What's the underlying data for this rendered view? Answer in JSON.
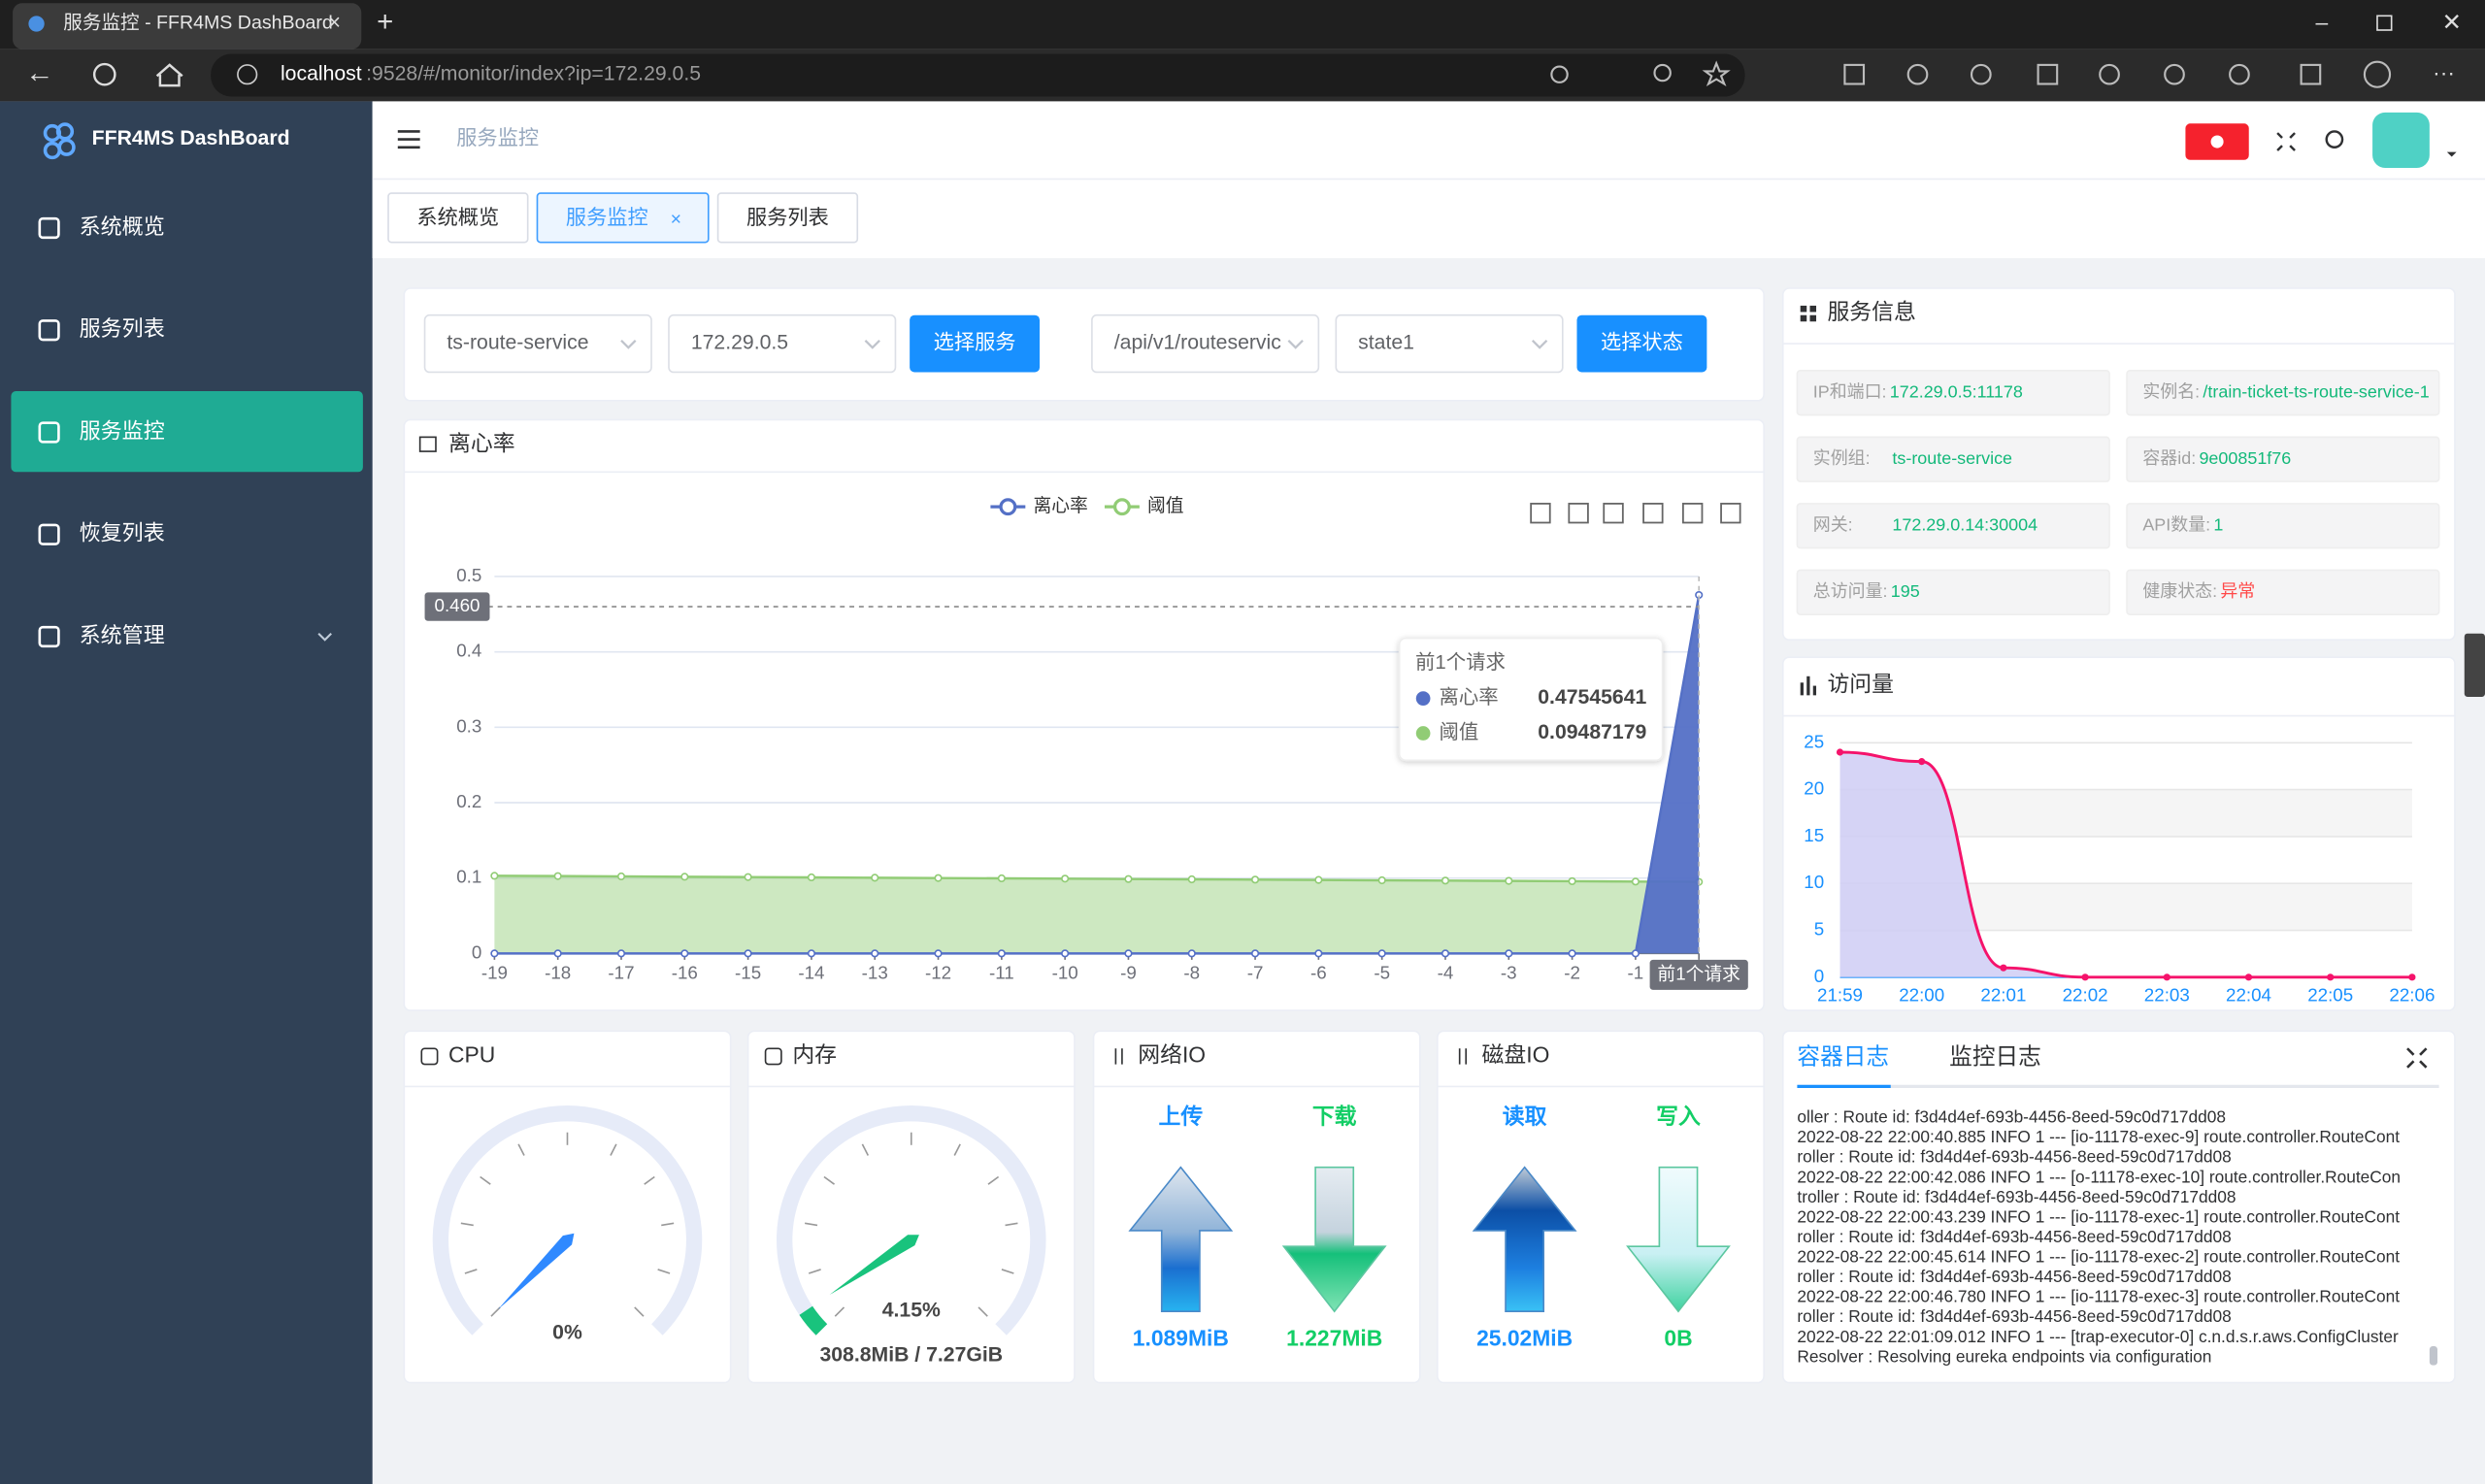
{
  "browser": {
    "tab_title": "服务监控 - FFR4MS DashBoard",
    "url_host": "localhost",
    "url_path": ":9528/#/monitor/index?ip=172.29.0.5"
  },
  "sidebar": {
    "brand": "FFR4MS DashBoard",
    "items": [
      "系统概览",
      "服务列表",
      "服务监控",
      "恢复列表",
      "系统管理"
    ],
    "active": 2
  },
  "header": {
    "breadcrumb": "服务监控"
  },
  "tabs": {
    "items": [
      "系统概览",
      "服务监控",
      "服务列表"
    ],
    "active": 1
  },
  "filters": {
    "service": "ts-route-service",
    "ip": "172.29.0.5",
    "select_service": "选择服务",
    "api": "/api/v1/routeservic",
    "state": "state1",
    "select_state": "选择状态"
  },
  "service_info": {
    "title": "服务信息",
    "fields": [
      {
        "label": "IP和端口:",
        "value": "172.29.0.5:11178"
      },
      {
        "label": "实例名:",
        "value": "/train-ticket-ts-route-service-1"
      },
      {
        "label": "实例组:",
        "value": "ts-route-service"
      },
      {
        "label": "容器id:",
        "value": "9e00851f76"
      },
      {
        "label": "网关:",
        "value": "172.29.0.14:30004"
      },
      {
        "label": "API数量:",
        "value": "1"
      },
      {
        "label": "总访问量:",
        "value": "195"
      },
      {
        "label": "健康状态:",
        "value": "异常",
        "value_color": "#ff4949"
      }
    ]
  },
  "divergence_chart": {
    "type": "line",
    "title": "离心率",
    "categories": [
      "-19",
      "-18",
      "-17",
      "-16",
      "-15",
      "-14",
      "-13",
      "-12",
      "-11",
      "-10",
      "-9",
      "-8",
      "-7",
      "-6",
      "-5",
      "-4",
      "-3",
      "-2",
      "-1",
      "前1个请求"
    ],
    "series": [
      {
        "name": "离心率",
        "color": "#5470c6",
        "values": [
          0,
          0,
          0,
          0,
          0,
          0,
          0,
          0,
          0,
          0,
          0,
          0,
          0,
          0,
          0,
          0,
          0,
          0,
          0,
          0.47545641
        ]
      },
      {
        "name": "阈值",
        "color": "#91cc75",
        "values": [
          0.103,
          0.1026,
          0.1022,
          0.1017,
          0.1013,
          0.1009,
          0.1004,
          0.1,
          0.0996,
          0.0992,
          0.0987,
          0.0983,
          0.0979,
          0.0975,
          0.097,
          0.0966,
          0.0962,
          0.0958,
          0.0953,
          0.09487179
        ]
      }
    ],
    "ylim": [
      0,
      0.5
    ],
    "yticks": [
      0,
      0.1,
      0.2,
      0.3,
      0.4,
      0.5
    ],
    "grid": true,
    "pointer_y": {
      "value": 0.46,
      "label": "0.460"
    },
    "tooltip_index": 19
  },
  "visits_chart": {
    "type": "line",
    "title": "访问量",
    "categories": [
      "21:59",
      "22:00",
      "22:01",
      "22:02",
      "22:03",
      "22:04",
      "22:05",
      "22:06"
    ],
    "series": [
      {
        "color": "#f5136b",
        "values": [
          24,
          23,
          1,
          0,
          0,
          0,
          0,
          0
        ]
      }
    ],
    "ylim": [
      0,
      25
    ],
    "yticks": [
      0,
      5,
      10,
      15,
      20,
      25
    ],
    "grid": true,
    "smooth": true
  },
  "gauges": [
    {
      "title": "CPU",
      "value": 0,
      "value_label": "0%",
      "lim": [
        0,
        100
      ],
      "color": "#2f89ff"
    },
    {
      "title": "内存",
      "value": 4.15,
      "value_label": "4.15%",
      "lim": [
        0,
        100
      ],
      "color": "#19c37d",
      "detail": "308.8MiB / 7.27GiB"
    }
  ],
  "io_panels": [
    {
      "title": "网络IO",
      "items": [
        {
          "label": "上传",
          "value": "1.089MiB"
        },
        {
          "label": "下载",
          "value": "1.227MiB"
        }
      ]
    },
    {
      "title": "磁盘IO",
      "items": [
        {
          "label": "读取",
          "value": "25.02MiB"
        },
        {
          "label": "写入",
          "value": "0B"
        }
      ]
    }
  ],
  "logs": {
    "tabs": [
      "容器日志",
      "监控日志"
    ],
    "active": 0,
    "lines": [
      "oller : Route id: f3d4d4ef-693b-4456-8eed-59c0d717dd08",
      "2022-08-22 22:00:40.885 INFO 1 --- [io-11178-exec-9] route.controller.RouteCont",
      "roller : Route id: f3d4d4ef-693b-4456-8eed-59c0d717dd08",
      "2022-08-22 22:00:42.086 INFO 1 --- [o-11178-exec-10] route.controller.RouteCon",
      "troller : Route id: f3d4d4ef-693b-4456-8eed-59c0d717dd08",
      "2022-08-22 22:00:43.239 INFO 1 --- [io-11178-exec-1] route.controller.RouteCont",
      "roller : Route id: f3d4d4ef-693b-4456-8eed-59c0d717dd08",
      "2022-08-22 22:00:45.614 INFO 1 --- [io-11178-exec-2] route.controller.RouteCont",
      "roller : Route id: f3d4d4ef-693b-4456-8eed-59c0d717dd08",
      "2022-08-22 22:00:46.780 INFO 1 --- [io-11178-exec-3] route.controller.RouteCont",
      "roller : Route id: f3d4d4ef-693b-4456-8eed-59c0d717dd08",
      "2022-08-22 22:01:09.012 INFO 1 --- [trap-executor-0] c.n.d.s.r.aws.ConfigCluster",
      "Resolver : Resolving eureka endpoints via configuration"
    ]
  }
}
